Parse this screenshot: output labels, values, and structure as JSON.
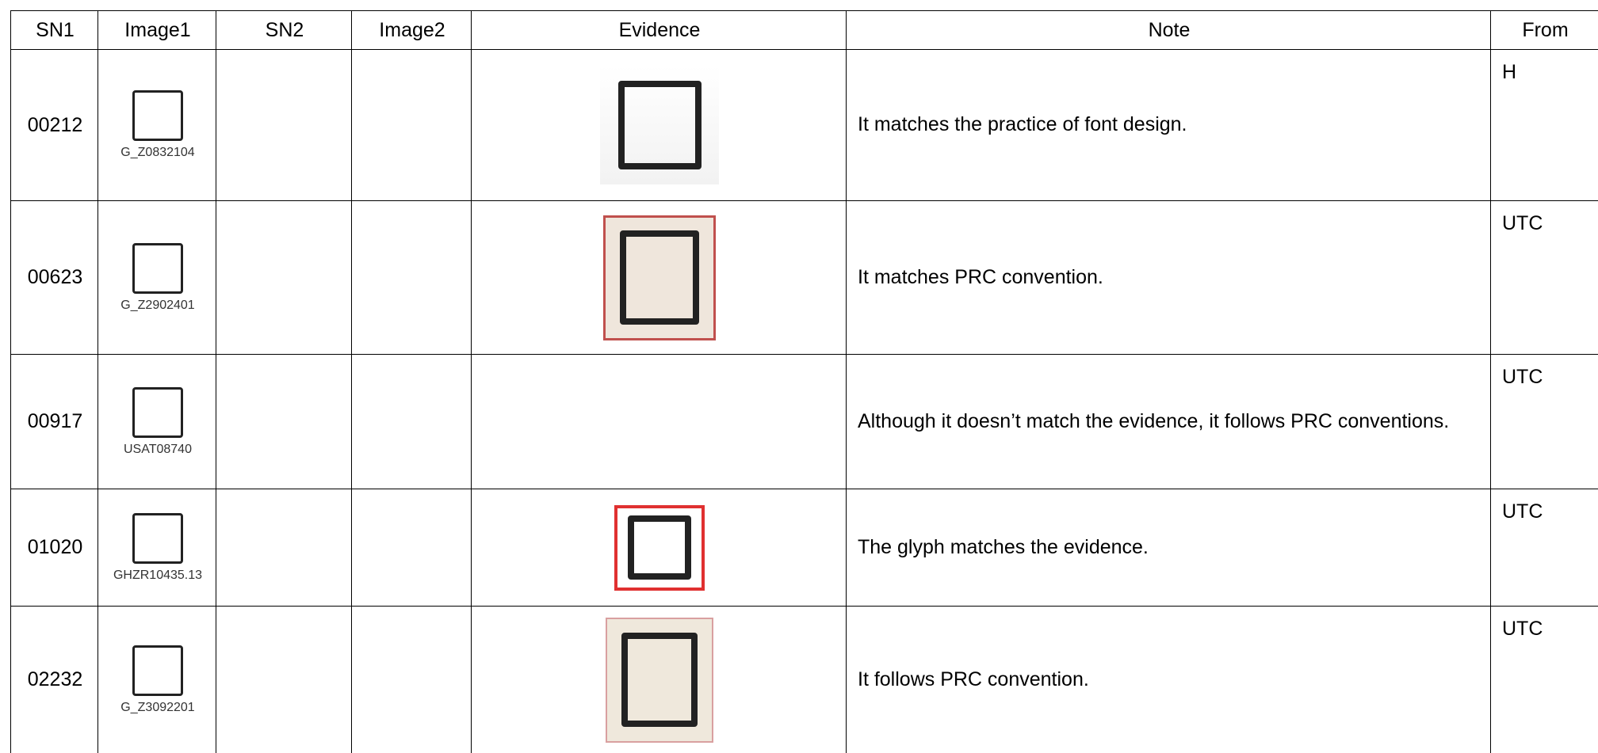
{
  "table": {
    "columns": [
      "SN1",
      "Image1",
      "SN2",
      "Image2",
      "Evidence",
      "Note",
      "From"
    ],
    "rows": [
      {
        "sn1": "00212",
        "image1_code": "G_Z0832104",
        "note": "It matches the practice of font design.",
        "from": "H"
      },
      {
        "sn1": "00623",
        "image1_code": "G_Z2902401",
        "note": "It matches PRC convention.",
        "from": "UTC"
      },
      {
        "sn1": "00917",
        "image1_code": "USAT08740",
        "note": "Although it doesn’t match the evidence, it follows PRC conventions.",
        "from": "UTC"
      },
      {
        "sn1": "01020",
        "image1_code": "GHZR10435.13",
        "note": "The glyph matches the evidence.",
        "from": "UTC"
      },
      {
        "sn1": "02232",
        "image1_code": "G_Z3092201",
        "note": "It follows PRC convention.",
        "from": "UTC"
      }
    ]
  }
}
